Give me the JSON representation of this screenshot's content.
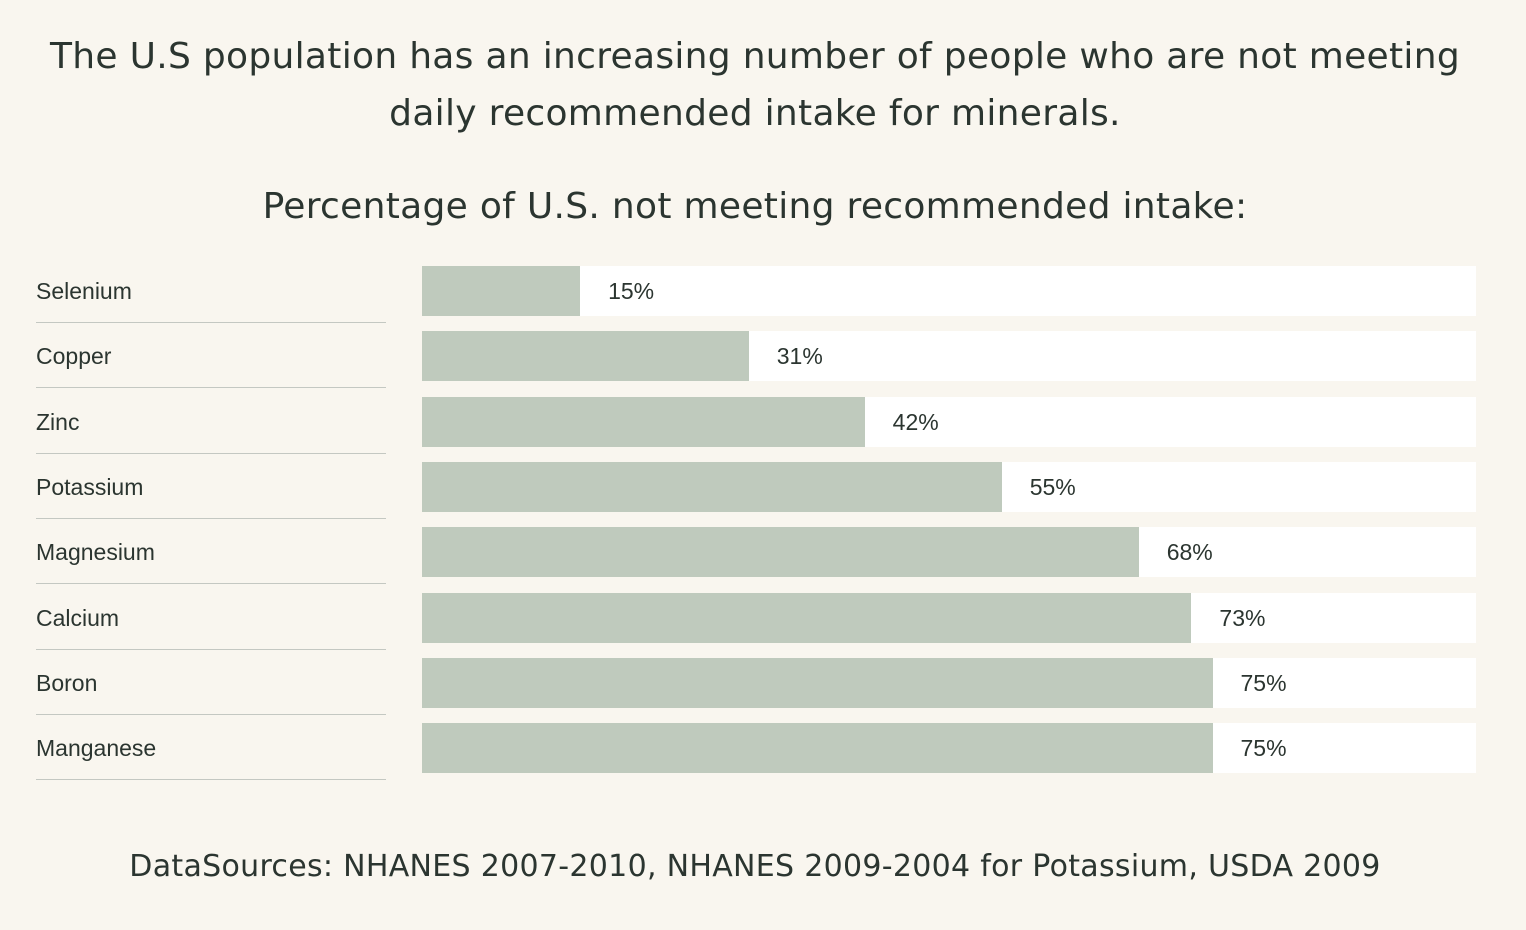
{
  "headline": "The U.S population has an increasing number of people who are not meeting daily recommended intake for minerals.",
  "source": "DataSources: NHANES 2007-2010, NHANES 2009-2004 for Potassium, USDA 2009",
  "chart_data": {
    "type": "bar",
    "orientation": "horizontal",
    "title": "Percentage of U.S. not meeting recommended intake:",
    "categories": [
      "Selenium",
      "Copper",
      "Zinc",
      "Potassium",
      "Magnesium",
      "Calcium",
      "Boron",
      "Manganese"
    ],
    "values": [
      15,
      31,
      42,
      55,
      68,
      73,
      75,
      75
    ],
    "value_labels": [
      "15%",
      "31%",
      "42%",
      "55%",
      "68%",
      "73%",
      "75%",
      "75%"
    ],
    "xlim": [
      0,
      100
    ],
    "unit": "%",
    "grid": false,
    "legend": "none",
    "colors": {
      "bar": "#bfcabd",
      "track": "#ffffff",
      "background": "#f9f6ef",
      "text": "#2b3530"
    }
  }
}
